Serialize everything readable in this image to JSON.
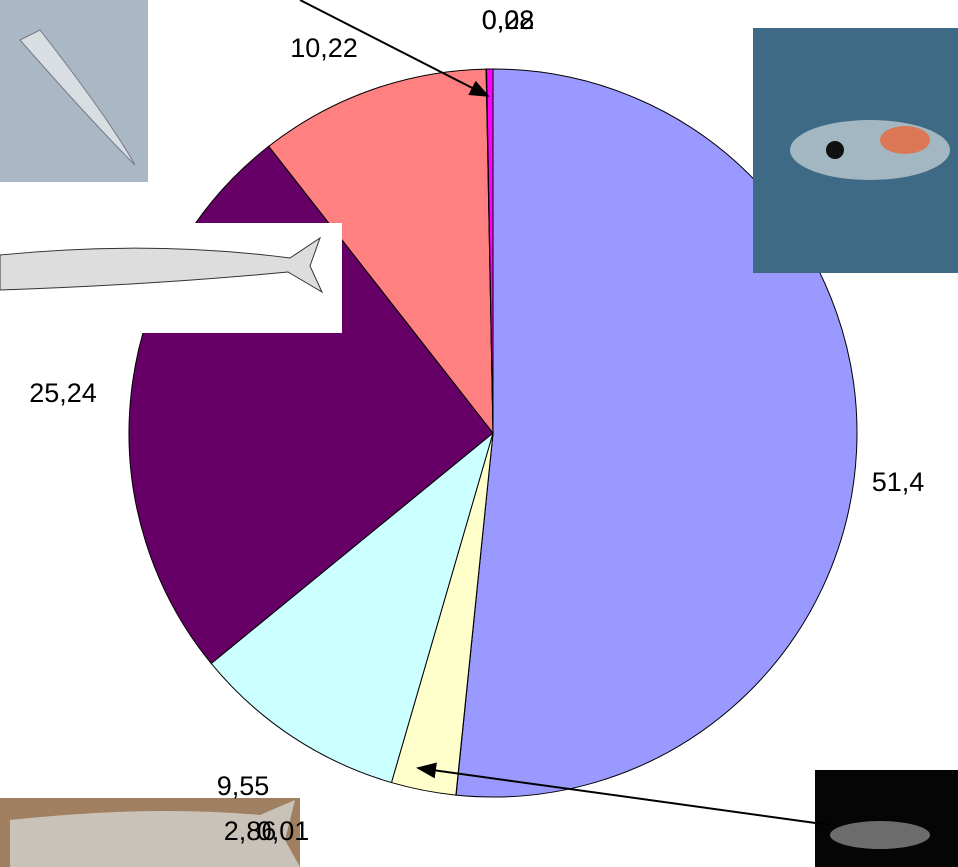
{
  "chart_data": {
    "type": "pie",
    "categories": [
      null,
      null,
      null,
      null,
      null,
      null,
      null,
      null
    ],
    "values": [
      51.4,
      0.01,
      2.86,
      9.55,
      25.24,
      10.22,
      0.02,
      0.28
    ],
    "value_labels": [
      "51,4",
      "0,01",
      "2,86",
      "9,55",
      "25,24",
      "10,22",
      "0,02",
      "0,28"
    ],
    "colors": [
      "#9999ff",
      "#993366",
      "#ffffcc",
      "#ccffff",
      "#660066",
      "#ff8080",
      "#0066cc",
      "#ff00ff"
    ]
  }
}
